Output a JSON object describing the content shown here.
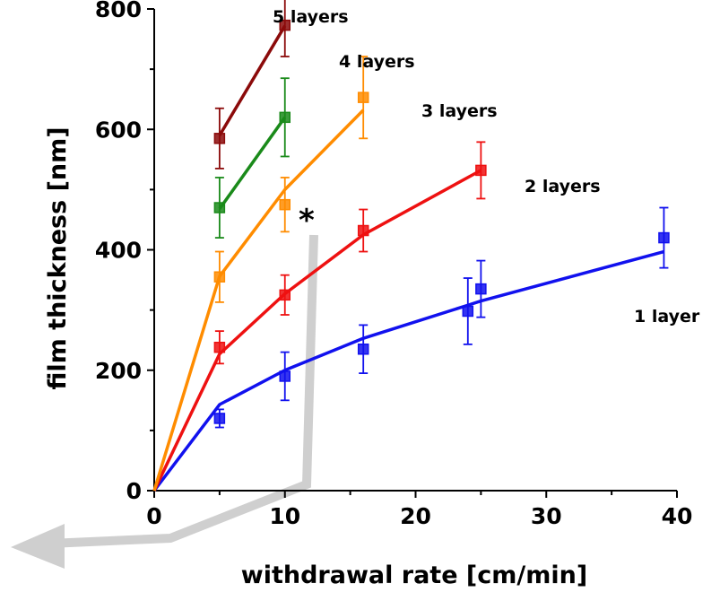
{
  "chart_data": {
    "type": "scatter",
    "xlabel": "withdrawal rate [cm/min]",
    "ylabel": "film thickness [nm]",
    "xlim": [
      0,
      40
    ],
    "ylim": [
      0,
      800
    ],
    "x_ticks": [
      0,
      10,
      20,
      30,
      40
    ],
    "y_ticks": [
      0,
      200,
      400,
      600,
      800
    ],
    "annotation": "*",
    "series": [
      {
        "name": "1 layer",
        "color": "#1111ee",
        "points": [
          {
            "x": 5,
            "y": 120,
            "err": 15
          },
          {
            "x": 10,
            "y": 190,
            "err": 40
          },
          {
            "x": 16,
            "y": 235,
            "err": 40
          },
          {
            "x": 24,
            "y": 298,
            "err": 55
          },
          {
            "x": 25,
            "y": 335,
            "err": 47
          },
          {
            "x": 39,
            "y": 420,
            "err": 50
          }
        ],
        "fit": [
          [
            0,
            0
          ],
          [
            5,
            143
          ],
          [
            10,
            200
          ],
          [
            16,
            253
          ],
          [
            24,
            308
          ],
          [
            25,
            315
          ],
          [
            39,
            397
          ]
        ]
      },
      {
        "name": "2 layers",
        "color": "#ee1111",
        "points": [
          {
            "x": 5,
            "y": 238,
            "err": 27
          },
          {
            "x": 10,
            "y": 325,
            "err": 33
          },
          {
            "x": 16,
            "y": 432,
            "err": 35
          },
          {
            "x": 25,
            "y": 532,
            "err": 47
          }
        ],
        "fit": [
          [
            0,
            0
          ],
          [
            5,
            227
          ],
          [
            10,
            327
          ],
          [
            16,
            425
          ],
          [
            25,
            532
          ]
        ]
      },
      {
        "name": "3 layers",
        "color": "#ff8c00",
        "points": [
          {
            "x": 5,
            "y": 355,
            "err": 42
          },
          {
            "x": 10,
            "y": 475,
            "err": 45
          },
          {
            "x": 16,
            "y": 653,
            "err": 68
          }
        ],
        "fit": [
          [
            0,
            0
          ],
          [
            5,
            356
          ],
          [
            10,
            500
          ],
          [
            16,
            632
          ]
        ]
      },
      {
        "name": "4 layers",
        "color": "#1a8a1a",
        "points": [
          {
            "x": 5,
            "y": 470,
            "err": 50
          },
          {
            "x": 10,
            "y": 620,
            "err": 65
          }
        ],
        "fit": [
          [
            5,
            468
          ],
          [
            10,
            620
          ]
        ]
      },
      {
        "name": "5 layers",
        "color": "#8b0a0a",
        "points": [
          {
            "x": 5,
            "y": 585,
            "err": 50
          },
          {
            "x": 10,
            "y": 773,
            "err": 52
          }
        ],
        "fit": [
          [
            5,
            590
          ],
          [
            10,
            772
          ]
        ]
      }
    ]
  }
}
